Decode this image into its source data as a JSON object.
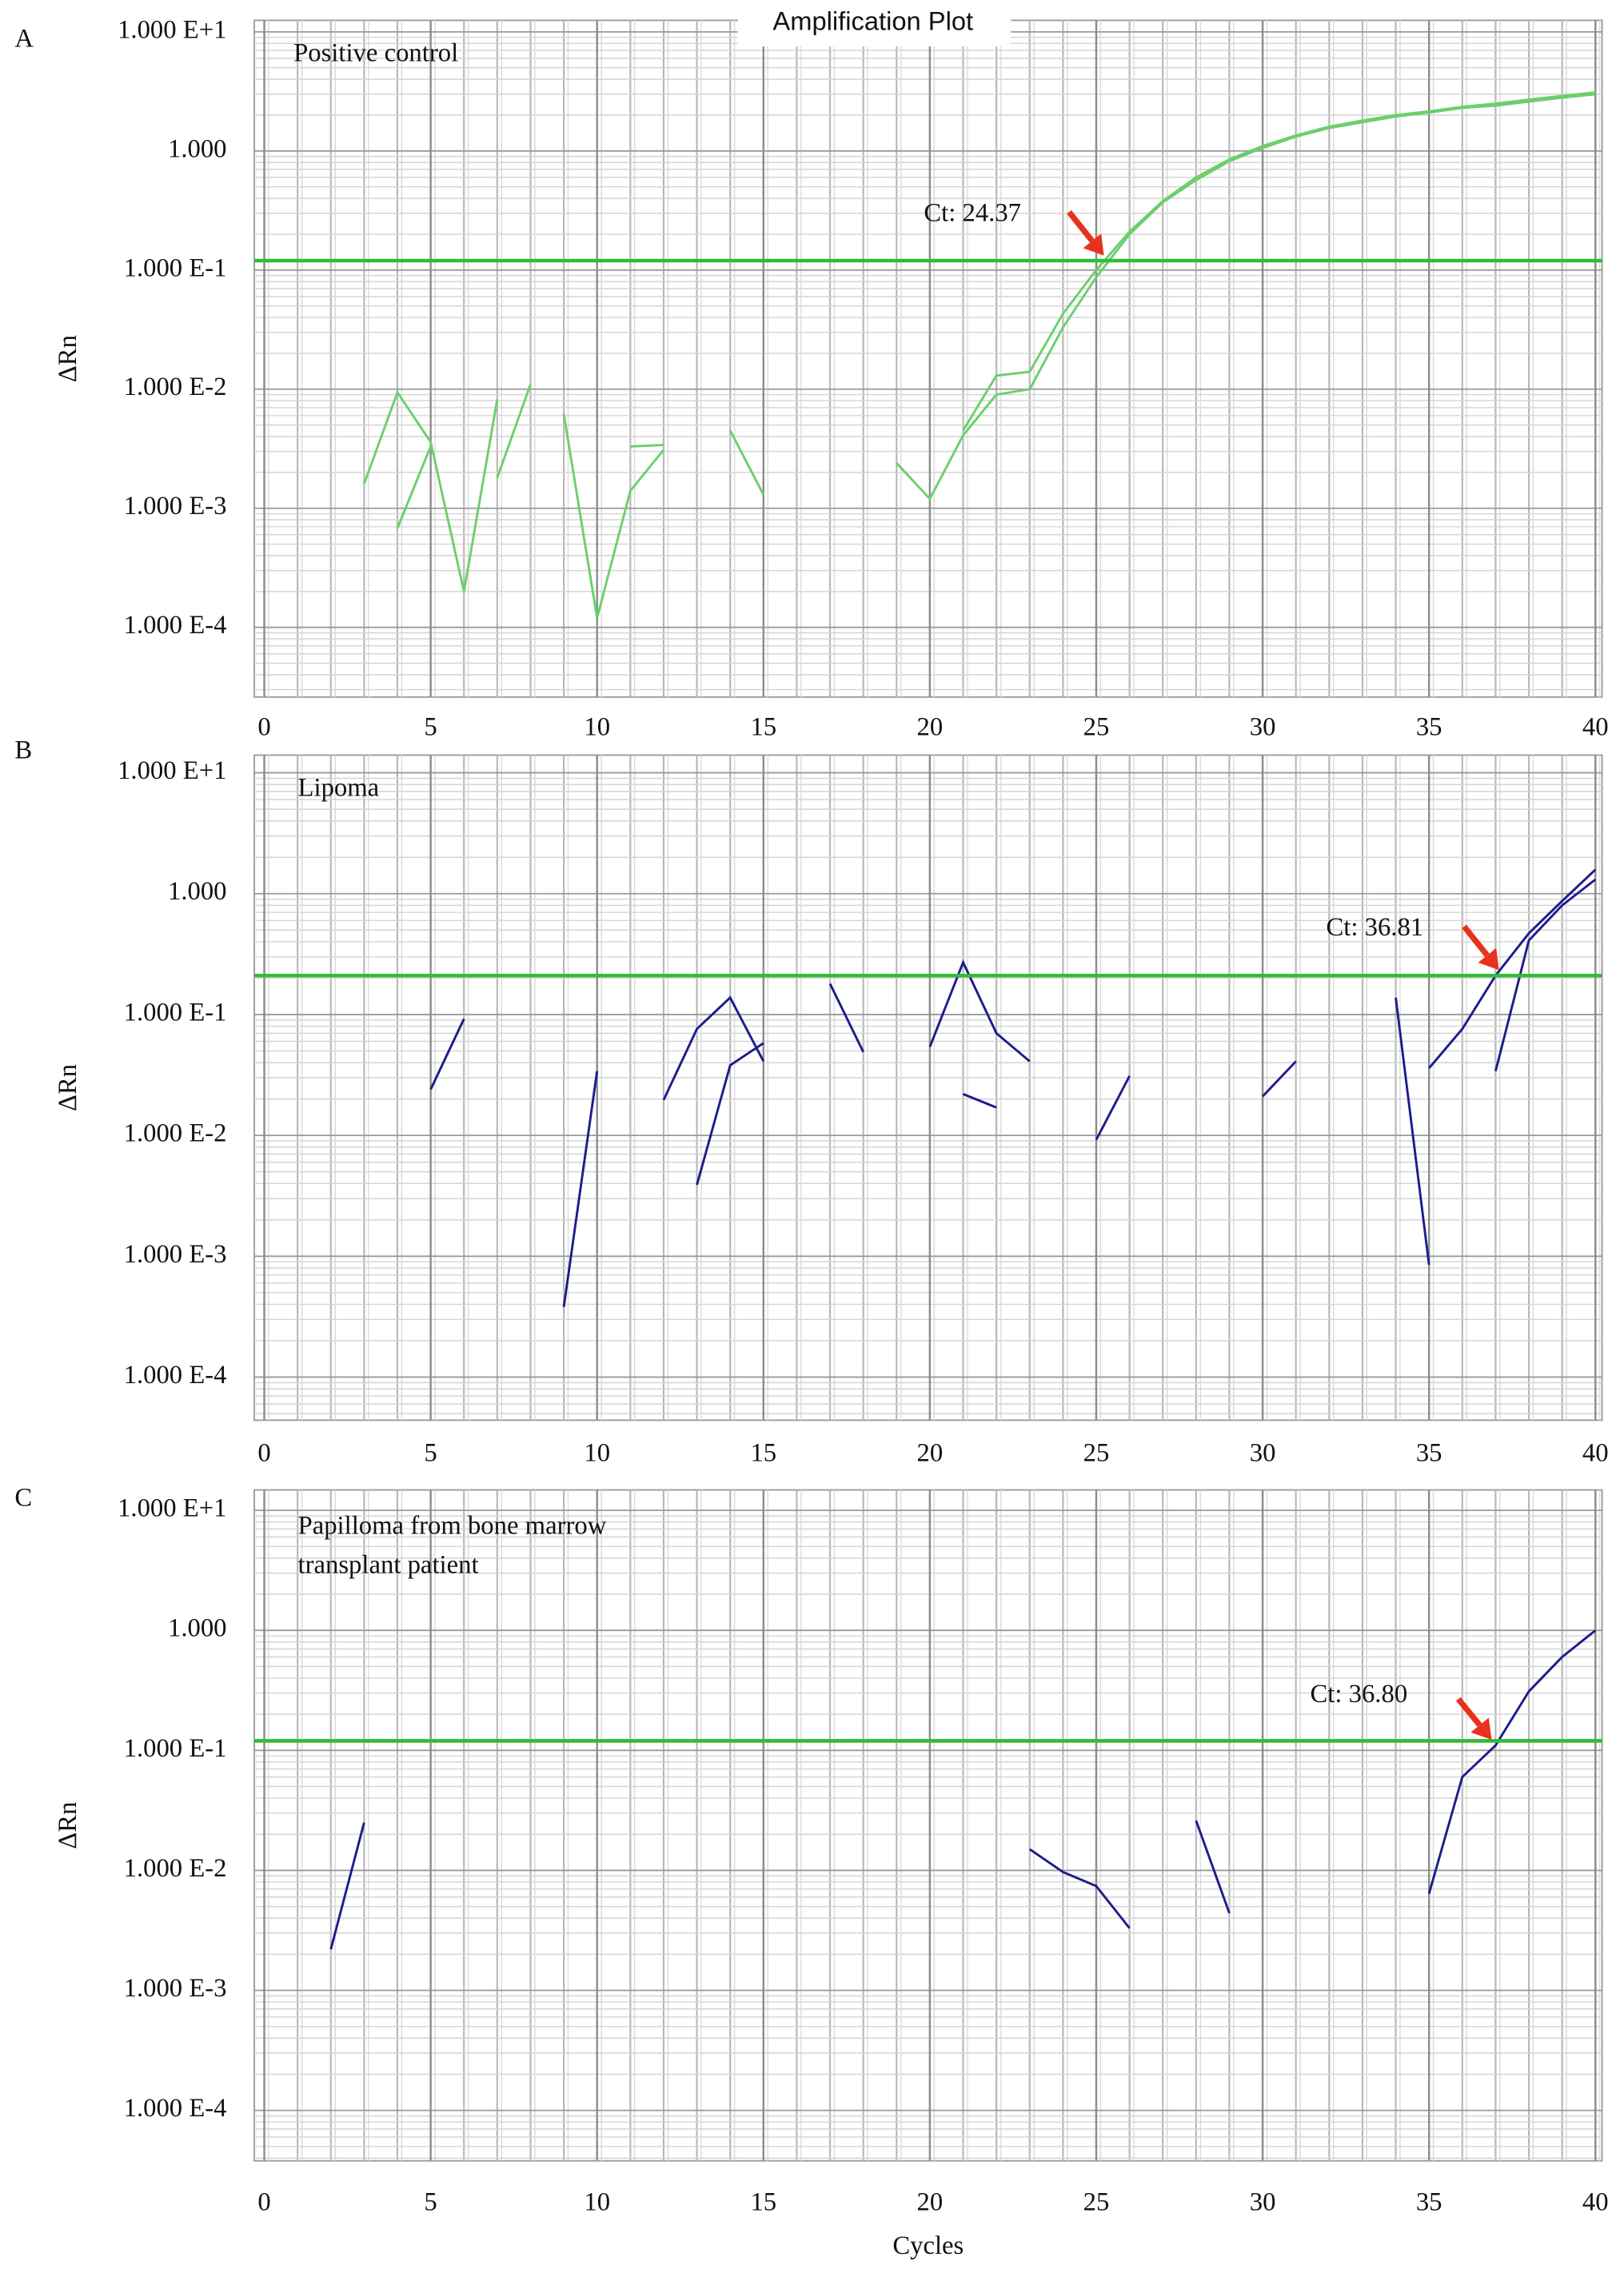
{
  "chart_data": [
    {
      "type": "line",
      "panel": "A",
      "title": "Amplification Plot",
      "ylabel": "ΔRn",
      "sample_label": [
        "Positive control"
      ],
      "ct_label": "Ct: 24.37",
      "log_y": true,
      "grid": true,
      "minor_grid": true,
      "xlim": [
        -0.3,
        40.2
      ],
      "xticks": [
        0,
        5,
        10,
        15,
        20,
        25,
        30,
        35,
        40
      ],
      "ylim": [
        2.6e-05,
        12.5
      ],
      "yticks": [
        {
          "value": 10,
          "label": "1.000 E+1"
        },
        {
          "value": 1,
          "label": "1.000"
        },
        {
          "value": 0.1,
          "label": "1.000 E-1"
        },
        {
          "value": 0.01,
          "label": "1.000 E-2"
        },
        {
          "value": 0.001,
          "label": "1.000 E-3"
        },
        {
          "value": 0.0001,
          "label": "1.000 E-4"
        }
      ],
      "threshold": 0.12,
      "threshold_color": "#33bb33",
      "x": [
        0,
        1,
        2,
        3,
        4,
        5,
        6,
        7,
        8,
        9,
        10,
        11,
        12,
        13,
        14,
        15,
        16,
        17,
        18,
        19,
        20,
        21,
        22,
        23,
        24,
        25,
        26,
        27,
        28,
        29,
        30,
        31,
        32,
        33,
        34,
        35,
        36,
        37,
        38,
        39,
        40
      ],
      "series": [
        {
          "color": "#6ccf6c",
          "values": [
            null,
            null,
            null,
            0.0016,
            0.0094,
            0.0036,
            0.0002,
            0.0082,
            null,
            0.0062,
            0.00012,
            0.0014,
            0.0031,
            null,
            0.0045,
            0.0013,
            null,
            null,
            null,
            0.0024,
            0.0012,
            0.0041,
            0.009,
            0.01,
            0.033,
            0.087,
            0.2,
            0.37,
            0.57,
            0.82,
            1.06,
            1.32,
            1.56,
            1.74,
            1.95,
            2.1,
            2.3,
            2.4,
            2.6,
            2.8,
            3.0
          ]
        },
        {
          "color": "#6ccf6c",
          "values": [
            null,
            null,
            null,
            null,
            0.00068,
            0.0033,
            null,
            0.0018,
            0.011,
            null,
            null,
            0.0033,
            0.0034,
            null,
            null,
            null,
            null,
            null,
            null,
            null,
            null,
            0.0045,
            0.013,
            0.014,
            0.043,
            0.1,
            0.21,
            0.38,
            0.6,
            0.85,
            1.1,
            1.35,
            1.6,
            1.8,
            2.0,
            2.15,
            2.35,
            2.5,
            2.7,
            2.9,
            3.1
          ]
        }
      ]
    },
    {
      "type": "line",
      "panel": "B",
      "ylabel": "ΔRn",
      "sample_label": [
        "Lipoma"
      ],
      "ct_label": "Ct: 36.81",
      "log_y": true,
      "grid": true,
      "minor_grid": true,
      "xlim": [
        -0.3,
        40.2
      ],
      "xticks": [
        0,
        5,
        10,
        15,
        20,
        25,
        30,
        35,
        40
      ],
      "ylim": [
        4.4e-05,
        14
      ],
      "yticks": [
        {
          "value": 10,
          "label": "1.000 E+1"
        },
        {
          "value": 1,
          "label": "1.000"
        },
        {
          "value": 0.1,
          "label": "1.000 E-1"
        },
        {
          "value": 0.01,
          "label": "1.000 E-2"
        },
        {
          "value": 0.001,
          "label": "1.000 E-3"
        },
        {
          "value": 0.0001,
          "label": "1.000 E-4"
        }
      ],
      "threshold": 0.21,
      "threshold_color": "#33bb33",
      "x": [
        0,
        1,
        2,
        3,
        4,
        5,
        6,
        7,
        8,
        9,
        10,
        11,
        12,
        13,
        14,
        15,
        16,
        17,
        18,
        19,
        20,
        21,
        22,
        23,
        24,
        25,
        26,
        27,
        28,
        29,
        30,
        31,
        32,
        33,
        34,
        35,
        36,
        37,
        38,
        39,
        40
      ],
      "series": [
        {
          "color": "#1c1c8c",
          "values": [
            null,
            null,
            null,
            null,
            null,
            0.024,
            0.092,
            null,
            null,
            0.00038,
            0.034,
            null,
            0.0196,
            0.076,
            0.138,
            0.041,
            null,
            0.18,
            0.049,
            null,
            0.054,
            0.27,
            0.07,
            0.041,
            null,
            0.0092,
            0.031,
            null,
            null,
            null,
            0.021,
            0.041,
            null,
            null,
            0.138,
            0.00085,
            null,
            null,
            null,
            null,
            null
          ]
        },
        {
          "color": "#1c1c8c",
          "values": [
            null,
            null,
            null,
            null,
            null,
            null,
            null,
            null,
            null,
            null,
            null,
            null,
            null,
            0.0039,
            0.038,
            0.058,
            null,
            null,
            null,
            null,
            null,
            0.022,
            0.017,
            null,
            null,
            null,
            null,
            null,
            null,
            null,
            null,
            null,
            null,
            null,
            null,
            0.036,
            0.076,
            0.21,
            0.47,
            0.87,
            1.58
          ]
        },
        {
          "color": "#1c1c8c",
          "values": [
            null,
            null,
            null,
            null,
            null,
            null,
            null,
            null,
            null,
            null,
            null,
            null,
            null,
            null,
            null,
            null,
            null,
            null,
            null,
            null,
            null,
            null,
            null,
            null,
            null,
            null,
            null,
            null,
            null,
            null,
            null,
            null,
            null,
            null,
            null,
            null,
            null,
            0.034,
            0.41,
            0.8,
            1.31
          ]
        }
      ]
    },
    {
      "type": "line",
      "panel": "C",
      "ylabel": "ΔRn",
      "xlabel": "Cycles",
      "sample_label": [
        "Papilloma from bone marrow",
        "transplant patient"
      ],
      "ct_label": "Ct: 36.80",
      "log_y": true,
      "grid": true,
      "minor_grid": true,
      "xlim": [
        -0.3,
        40.2
      ],
      "xticks": [
        0,
        5,
        10,
        15,
        20,
        25,
        30,
        35,
        40
      ],
      "ylim": [
        3.8e-05,
        14.8
      ],
      "yticks": [
        {
          "value": 10,
          "label": "1.000 E+1"
        },
        {
          "value": 1,
          "label": "1.000"
        },
        {
          "value": 0.1,
          "label": "1.000 E-1"
        },
        {
          "value": 0.01,
          "label": "1.000 E-2"
        },
        {
          "value": 0.001,
          "label": "1.000 E-3"
        },
        {
          "value": 0.0001,
          "label": "1.000 E-4"
        }
      ],
      "threshold": 0.12,
      "threshold_color": "#33bb33",
      "x": [
        0,
        1,
        2,
        3,
        4,
        5,
        6,
        7,
        8,
        9,
        10,
        11,
        12,
        13,
        14,
        15,
        16,
        17,
        18,
        19,
        20,
        21,
        22,
        23,
        24,
        25,
        26,
        27,
        28,
        29,
        30,
        31,
        32,
        33,
        34,
        35,
        36,
        37,
        38,
        39,
        40
      ],
      "series": [
        {
          "color": "#1c1c8c",
          "values": [
            null,
            null,
            0.0022,
            0.025,
            null,
            null,
            null,
            null,
            null,
            null,
            null,
            null,
            null,
            null,
            null,
            null,
            null,
            null,
            null,
            null,
            null,
            null,
            null,
            0.015,
            0.0097,
            0.0074,
            0.0033,
            null,
            0.026,
            0.0044,
            null,
            null,
            null,
            null,
            null,
            0.0064,
            0.06,
            0.11,
            0.31,
            0.6,
            1.0
          ]
        }
      ]
    }
  ]
}
